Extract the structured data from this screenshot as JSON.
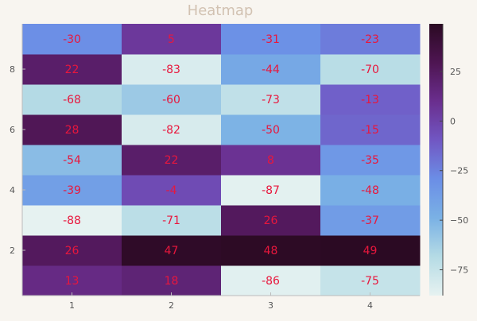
{
  "chart_data": {
    "type": "heatmap",
    "title": "Heatmap",
    "xlabel": "",
    "ylabel": "",
    "x": [
      1,
      2,
      3,
      4
    ],
    "y": [
      1,
      2,
      3,
      4,
      5,
      6,
      7,
      8,
      9
    ],
    "x_ticks": [
      "1",
      "2",
      "3",
      "4"
    ],
    "y_ticks": [
      "2",
      "4",
      "6",
      "8"
    ],
    "values": [
      [
        13,
        18,
        -86,
        -75
      ],
      [
        26,
        47,
        48,
        49
      ],
      [
        -88,
        -71,
        26,
        -37
      ],
      [
        -39,
        -4,
        -87,
        -48
      ],
      [
        -54,
        22,
        8,
        -35
      ],
      [
        28,
        -82,
        -50,
        -15
      ],
      [
        -68,
        -60,
        -73,
        -13
      ],
      [
        22,
        -83,
        -44,
        -70
      ],
      [
        -30,
        5,
        -31,
        -23
      ]
    ],
    "value_labels": [
      [
        "13",
        "18",
        "-86",
        "-75"
      ],
      [
        "26",
        "47",
        "48",
        "49"
      ],
      [
        "-88",
        "-71",
        "26",
        "-37"
      ],
      [
        "-39",
        "-4",
        "-87",
        "-48"
      ],
      [
        "-54",
        "22",
        "8",
        "-35"
      ],
      [
        "28",
        "-82",
        "-50",
        "-15"
      ],
      [
        "-68",
        "-60",
        "-73",
        "-13"
      ],
      [
        "22",
        "-83",
        "-44",
        "-70"
      ],
      [
        "-30",
        "5",
        "-31",
        "-23"
      ]
    ],
    "zlim": [
      -88,
      49
    ],
    "colorbar": {
      "ticks": [
        25,
        0,
        -25,
        -50,
        -75
      ],
      "tick_labels": [
        "25",
        "0",
        "−25",
        "−50",
        "−75"
      ]
    },
    "colormap": [
      "#e6f2f1",
      "#b5dbe5",
      "#7ab1e5",
      "#6b8ee6",
      "#7157c3",
      "#6a2e8e",
      "#4e1552",
      "#2b0a23"
    ],
    "colors": {
      "title": "#d2c2b2",
      "annotation": "#e8173d",
      "tick_text": "#555555",
      "axis": "#bbbbbb"
    },
    "grid": false,
    "legend": "colorbar-right"
  }
}
